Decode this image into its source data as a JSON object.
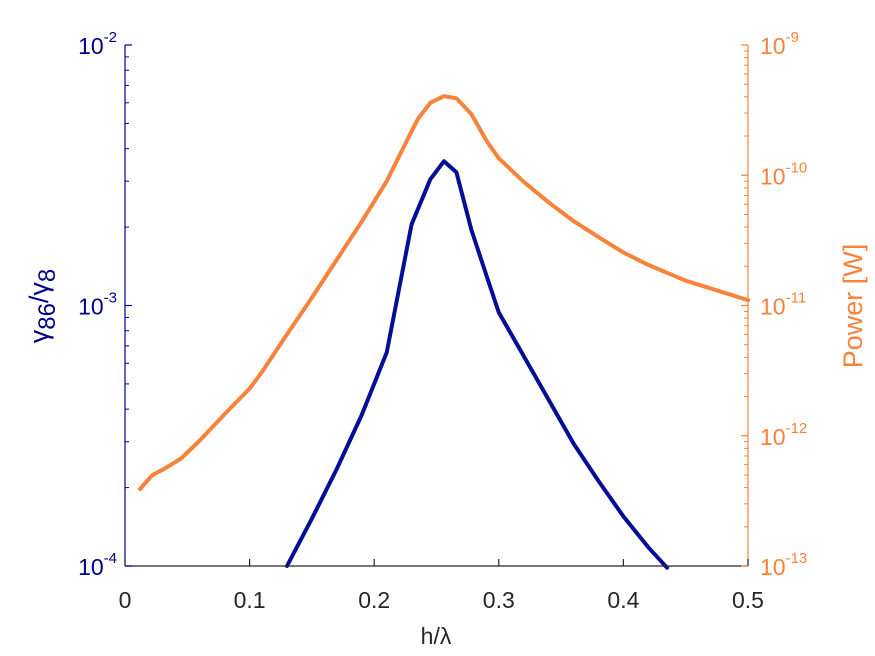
{
  "chart_data": {
    "type": "line",
    "title": "",
    "xlabel": "h/λ",
    "ylabel_left": "γ86/γ8",
    "ylabel_right": "Power [W]",
    "xlim": [
      0,
      0.5
    ],
    "ylim_left": [
      0.0001,
      0.01
    ],
    "ylim_right": [
      1e-13,
      1e-09
    ],
    "yscale_left": "log",
    "yscale_right": "log",
    "grid": false,
    "legend": "none",
    "x_ticks": [
      "0",
      "0.1",
      "0.2",
      "0.3",
      "0.4",
      "0.5"
    ],
    "y_ticks_left": [
      {
        "base": "10",
        "exp": "-4"
      },
      {
        "base": "10",
        "exp": "-3"
      },
      {
        "base": "10",
        "exp": "-2"
      }
    ],
    "y_ticks_right": [
      {
        "base": "10",
        "exp": "-13"
      },
      {
        "base": "10",
        "exp": "-12"
      },
      {
        "base": "10",
        "exp": "-11"
      },
      {
        "base": "10",
        "exp": "-10"
      },
      {
        "base": "10",
        "exp": "-9"
      }
    ],
    "colors": {
      "left_axis": "#00008B",
      "right_axis": "#F7823A",
      "left_series": "#000F96",
      "right_series": "#F7823A",
      "bottom_axis": "#262626"
    },
    "series": [
      {
        "axis": "left",
        "x": [
          0.13,
          0.15,
          0.17,
          0.19,
          0.21,
          0.23,
          0.245,
          0.256,
          0.266,
          0.278,
          0.29,
          0.3,
          0.32,
          0.34,
          0.36,
          0.38,
          0.4,
          0.42,
          0.435
        ],
        "y": [
          0.0001,
          0.000152,
          0.000236,
          0.00038,
          0.00066,
          0.00205,
          0.00305,
          0.00358,
          0.00325,
          0.00195,
          0.00131,
          0.00094,
          0.00064,
          0.000435,
          0.000295,
          0.000212,
          0.000155,
          0.000118,
          9.85e-05
        ]
      },
      {
        "axis": "right",
        "x": [
          0.012,
          0.022,
          0.032,
          0.045,
          0.06,
          0.08,
          0.1,
          0.11,
          0.13,
          0.15,
          0.17,
          0.19,
          0.21,
          0.225,
          0.235,
          0.245,
          0.256,
          0.266,
          0.278,
          0.29,
          0.3,
          0.32,
          0.34,
          0.36,
          0.38,
          0.4,
          0.42,
          0.45,
          0.5
        ],
        "y": [
          3.9e-13,
          5e-13,
          5.6e-13,
          6.7e-13,
          9.2e-13,
          1.47e-12,
          2.3e-12,
          3.1e-12,
          6e-12,
          1.15e-11,
          2.25e-11,
          4.4e-11,
          9e-11,
          1.75e-10,
          2.7e-10,
          3.6e-10,
          4.05e-10,
          3.9e-10,
          2.95e-10,
          1.85e-10,
          1.35e-10,
          8.9e-11,
          6.2e-11,
          4.45e-11,
          3.35e-11,
          2.55e-11,
          2.05e-11,
          1.55e-11,
          1.1e-11
        ]
      }
    ]
  }
}
